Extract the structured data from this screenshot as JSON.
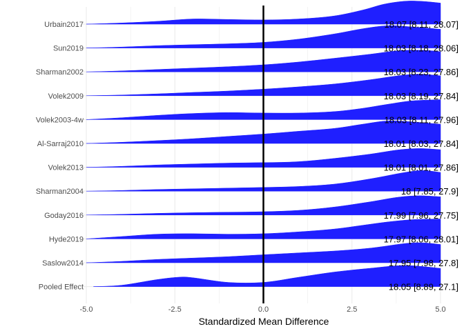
{
  "chart_data": {
    "type": "ridgeline",
    "xlabel": "Standardized Mean Difference",
    "xlim": [
      -5,
      5
    ],
    "xticks": [
      "-5.0",
      "-2.5",
      "0.0",
      "2.5",
      "5.0"
    ],
    "xtick_values": [
      -5,
      -2.5,
      0,
      2.5,
      5
    ],
    "reference_line_x": 0,
    "fill_color": "#1f1fff",
    "rows": [
      {
        "study": "Urbain2017",
        "label": "18.07 [8.11, 28.07]",
        "curve": [
          [
            -5,
            0
          ],
          [
            -4,
            0.05
          ],
          [
            -3,
            0.12
          ],
          [
            -2,
            0.22
          ],
          [
            -1,
            0.2
          ],
          [
            0,
            0.18
          ],
          [
            1,
            0.22
          ],
          [
            2,
            0.35
          ],
          [
            2.8,
            0.6
          ],
          [
            3.4,
            0.85
          ],
          [
            4,
            0.98
          ],
          [
            4.5,
            0.97
          ],
          [
            5,
            0.9
          ]
        ]
      },
      {
        "study": "Sun2019",
        "label": "18.03 [8.18, 28.06]",
        "curve": [
          [
            -5,
            0
          ],
          [
            -4,
            0.04
          ],
          [
            -3,
            0.1
          ],
          [
            -2,
            0.14
          ],
          [
            -1,
            0.18
          ],
          [
            0,
            0.24
          ],
          [
            1,
            0.38
          ],
          [
            2,
            0.6
          ],
          [
            2.8,
            0.82
          ],
          [
            3.5,
            0.95
          ],
          [
            4.2,
            0.9
          ],
          [
            5,
            0.8
          ]
        ]
      },
      {
        "study": "Sharman2002",
        "label": "18.03 [8.23, 27.86]",
        "curve": [
          [
            -5,
            0
          ],
          [
            -4,
            0.04
          ],
          [
            -3,
            0.1
          ],
          [
            -2,
            0.16
          ],
          [
            -1,
            0.22
          ],
          [
            0,
            0.3
          ],
          [
            1,
            0.42
          ],
          [
            2,
            0.58
          ],
          [
            3,
            0.75
          ],
          [
            3.8,
            0.9
          ],
          [
            4.5,
            0.92
          ],
          [
            5,
            0.86
          ]
        ]
      },
      {
        "study": "Volek2009",
        "label": "18.03 [8.19, 27.84]",
        "curve": [
          [
            -5,
            0
          ],
          [
            -4,
            0.03
          ],
          [
            -3,
            0.08
          ],
          [
            -2,
            0.14
          ],
          [
            -1,
            0.2
          ],
          [
            0,
            0.28
          ],
          [
            1,
            0.38
          ],
          [
            2,
            0.5
          ],
          [
            3,
            0.68
          ],
          [
            3.8,
            0.85
          ],
          [
            4.4,
            0.92
          ],
          [
            5,
            0.85
          ]
        ]
      },
      {
        "study": "Volek2003-4w",
        "label": "18.03 [8.11, 27.96]",
        "curve": [
          [
            -5,
            0
          ],
          [
            -4,
            0.08
          ],
          [
            -3,
            0.18
          ],
          [
            -2,
            0.26
          ],
          [
            -1,
            0.3
          ],
          [
            0,
            0.28
          ],
          [
            1,
            0.28
          ],
          [
            2,
            0.34
          ],
          [
            2.8,
            0.48
          ],
          [
            3.5,
            0.65
          ],
          [
            4.2,
            0.8
          ],
          [
            5,
            0.85
          ]
        ]
      },
      {
        "study": "Al-Sarraj2010",
        "label": "18.01 [8.03, 27.84]",
        "curve": [
          [
            -5,
            0
          ],
          [
            -4,
            0.05
          ],
          [
            -3,
            0.12
          ],
          [
            -2,
            0.2
          ],
          [
            -1,
            0.3
          ],
          [
            0,
            0.4
          ],
          [
            1,
            0.52
          ],
          [
            2,
            0.64
          ],
          [
            2.8,
            0.82
          ],
          [
            3.5,
            0.96
          ],
          [
            4.2,
            0.92
          ],
          [
            5,
            0.82
          ]
        ]
      },
      {
        "study": "Volek2013",
        "label": "18.01 [8.01, 27.86]",
        "curve": [
          [
            -5,
            0
          ],
          [
            -4,
            0.04
          ],
          [
            -3,
            0.1
          ],
          [
            -2,
            0.14
          ],
          [
            -1,
            0.18
          ],
          [
            0,
            0.2
          ],
          [
            1,
            0.24
          ],
          [
            2,
            0.38
          ],
          [
            3,
            0.56
          ],
          [
            3.8,
            0.74
          ],
          [
            4.4,
            0.8
          ],
          [
            5,
            0.75
          ]
        ]
      },
      {
        "study": "Sharman2004",
        "label": "18 [7.85, 27.9]",
        "curve": [
          [
            -5,
            0
          ],
          [
            -4,
            0.03
          ],
          [
            -3,
            0.07
          ],
          [
            -2,
            0.1
          ],
          [
            -1,
            0.13
          ],
          [
            0,
            0.16
          ],
          [
            1,
            0.2
          ],
          [
            2,
            0.3
          ],
          [
            3,
            0.52
          ],
          [
            4,
            0.8
          ],
          [
            4.5,
            0.88
          ],
          [
            5,
            0.8
          ]
        ]
      },
      {
        "study": "Goday2016",
        "label": "17.99 [7.96, 27.75]",
        "curve": [
          [
            -5,
            0
          ],
          [
            -4,
            0.03
          ],
          [
            -3,
            0.07
          ],
          [
            -2,
            0.1
          ],
          [
            -1,
            0.12
          ],
          [
            0,
            0.14
          ],
          [
            1,
            0.2
          ],
          [
            2,
            0.34
          ],
          [
            3,
            0.56
          ],
          [
            3.8,
            0.76
          ],
          [
            4.4,
            0.82
          ],
          [
            5,
            0.78
          ]
        ]
      },
      {
        "study": "Hyde2019",
        "label": "17.97 [8.06, 28.01]",
        "curve": [
          [
            -5,
            0
          ],
          [
            -4,
            0.1
          ],
          [
            -3,
            0.2
          ],
          [
            -2,
            0.22
          ],
          [
            -1,
            0.2
          ],
          [
            0,
            0.22
          ],
          [
            1,
            0.3
          ],
          [
            2,
            0.42
          ],
          [
            2.8,
            0.58
          ],
          [
            3.5,
            0.72
          ],
          [
            4.2,
            0.82
          ],
          [
            5,
            0.85
          ]
        ]
      },
      {
        "study": "Saslow2014",
        "label": "17.95 [7.98, 27.8]",
        "curve": [
          [
            -5,
            0
          ],
          [
            -4,
            0.06
          ],
          [
            -3,
            0.14
          ],
          [
            -2,
            0.2
          ],
          [
            -1,
            0.26
          ],
          [
            0,
            0.34
          ],
          [
            1,
            0.42
          ],
          [
            2,
            0.5
          ],
          [
            3,
            0.62
          ],
          [
            4,
            0.82
          ],
          [
            4.5,
            0.85
          ],
          [
            5,
            0.78
          ]
        ]
      },
      {
        "study": "Pooled Effect",
        "label": "18.05 [8.89, 27.1]",
        "curve": [
          [
            -4.8,
            0
          ],
          [
            -4,
            0.06
          ],
          [
            -3,
            0.3
          ],
          [
            -2.4,
            0.4
          ],
          [
            -2,
            0.38
          ],
          [
            -1,
            0.18
          ],
          [
            0,
            0.18
          ],
          [
            1,
            0.4
          ],
          [
            2,
            0.62
          ],
          [
            3,
            0.78
          ],
          [
            4,
            0.9
          ],
          [
            5,
            0.78
          ]
        ]
      }
    ]
  }
}
